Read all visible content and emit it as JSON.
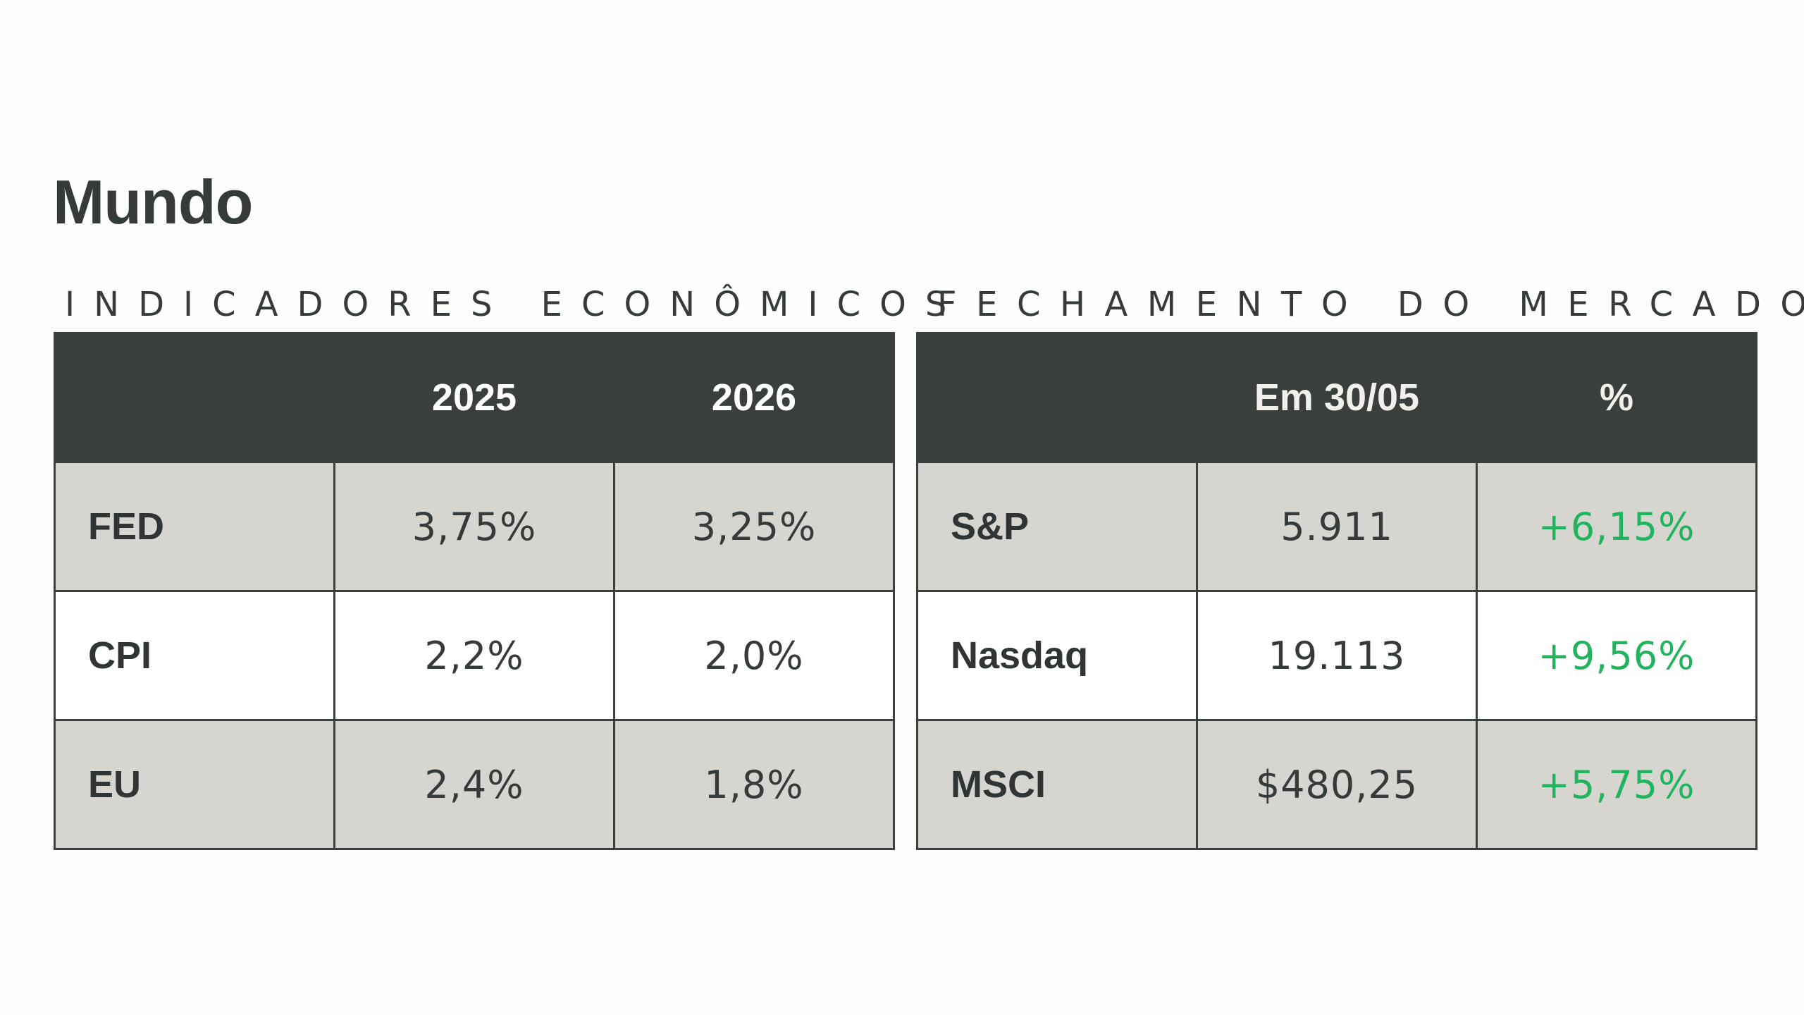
{
  "page": {
    "title": "Mundo"
  },
  "indicators": {
    "heading": "INDICADORES ECONÔMICOS",
    "columns": [
      "",
      "2025",
      "2026"
    ],
    "rows": [
      {
        "label": "FED",
        "values": [
          "3,75%",
          "3,25%"
        ]
      },
      {
        "label": "CPI",
        "values": [
          "2,2%",
          "2,0%"
        ]
      },
      {
        "label": "EU",
        "values": [
          "2,4%",
          "1,8%"
        ]
      }
    ]
  },
  "market": {
    "heading": "FECHAMENTO DO MERCADO",
    "columns": [
      "",
      "Em 30/05",
      "%"
    ],
    "rows": [
      {
        "label": "S&P",
        "values": [
          "5.911",
          "+6,15%"
        ]
      },
      {
        "label": "Nasdaq",
        "values": [
          "19.113",
          "+9,56%"
        ]
      },
      {
        "label": "MSCI",
        "values": [
          "$480,25",
          "+5,75%"
        ]
      }
    ]
  },
  "colors": {
    "background": "#fdfdfc",
    "header_bg": "#383f3d",
    "shaded_row": "#d6d5cf",
    "text_dark": "#343b3a",
    "positive": "#22b35e"
  }
}
